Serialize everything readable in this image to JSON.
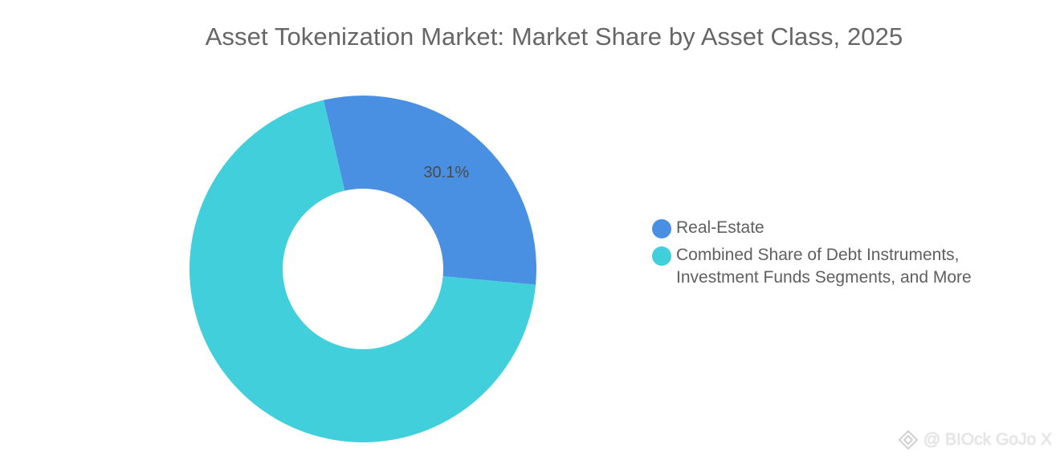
{
  "chart_data": {
    "type": "pie",
    "title": "Asset Tokenization Market: Market Share by Asset Class, 2025",
    "categories": [
      "Real-Estate",
      "Combined Share of Debt Instruments, Investment Funds Segments, and More"
    ],
    "values": [
      30.1,
      69.9
    ],
    "data_labels": [
      "30.1%",
      ""
    ],
    "colors": [
      "#4a90e2",
      "#41cfdb"
    ],
    "legend_position": "right"
  },
  "legend": {
    "items": [
      {
        "label": "Real-Estate",
        "color": "#4a90e2"
      },
      {
        "label": "Combined Share of Debt Instruments, Investment Funds Segments, and More",
        "color": "#41cfdb"
      }
    ]
  },
  "watermark": {
    "text": "@ BIOck GoJo X",
    "icon": "diamond-logo-icon"
  }
}
